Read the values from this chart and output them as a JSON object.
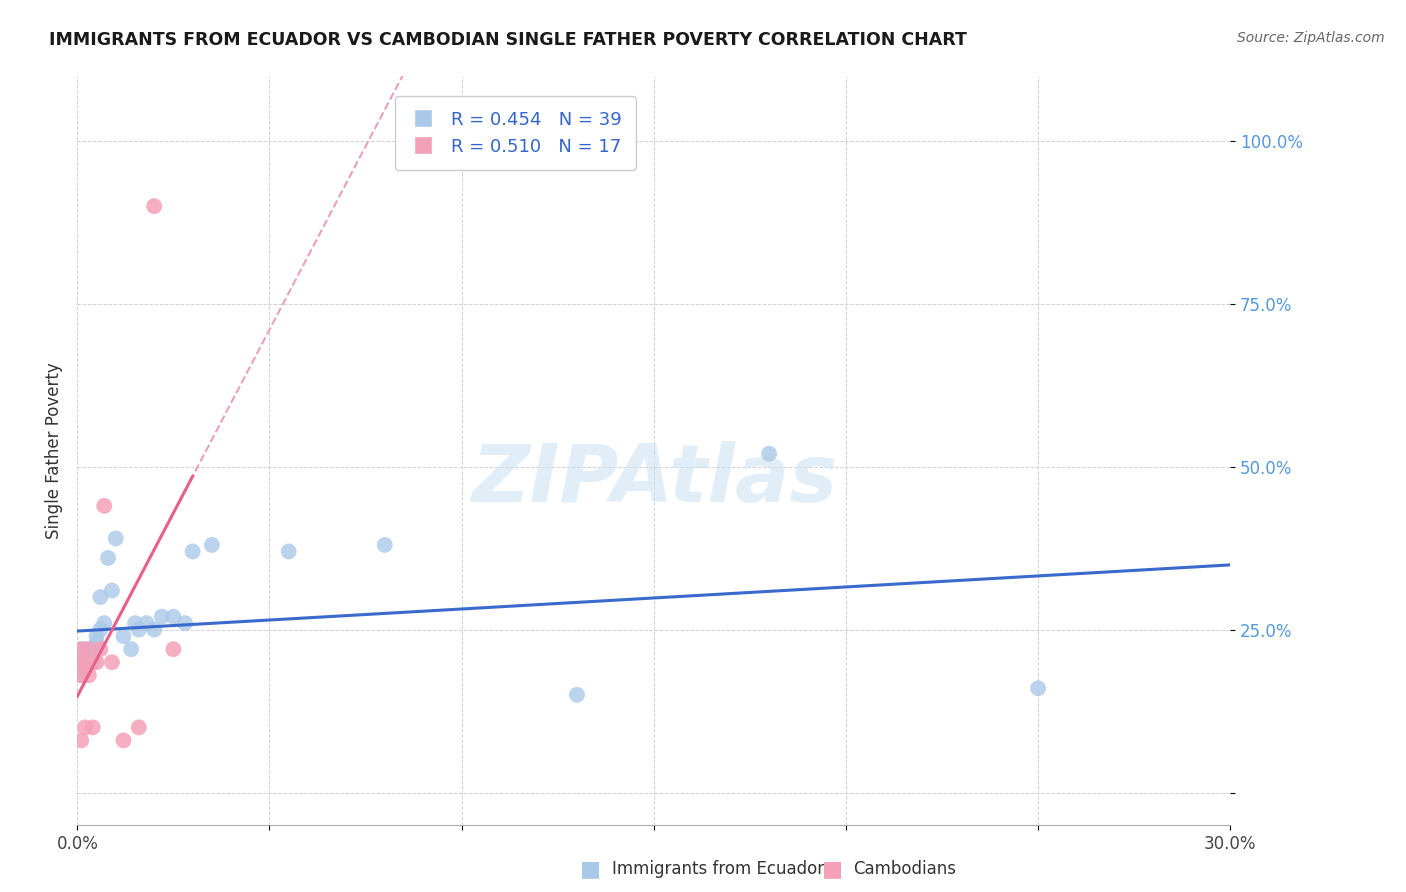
{
  "title": "IMMIGRANTS FROM ECUADOR VS CAMBODIAN SINGLE FATHER POVERTY CORRELATION CHART",
  "source": "Source: ZipAtlas.com",
  "ylabel_label": "Single Father Poverty",
  "x_min": 0.0,
  "x_max": 0.3,
  "y_min": -0.05,
  "y_max": 1.1,
  "blue_color": "#aac8e8",
  "pink_color": "#f4a0b8",
  "blue_line_color": "#3a6bcc",
  "pink_line_color": "#e8608a",
  "pink_dash_color": "#e8a0bc",
  "legend_blue_text": "R = 0.454   N = 39",
  "legend_pink_text": "R = 0.510   N = 17",
  "legend_label_ecuador": "Immigrants from Ecuador",
  "legend_label_cambodian": "Cambodians",
  "watermark": "ZIPAtlas",
  "ecuador_x": [
    0.001,
    0.001,
    0.001,
    0.001,
    0.001,
    0.002,
    0.002,
    0.002,
    0.002,
    0.002,
    0.003,
    0.003,
    0.003,
    0.004,
    0.004,
    0.005,
    0.005,
    0.006,
    0.006,
    0.007,
    0.008,
    0.009,
    0.01,
    0.012,
    0.014,
    0.015,
    0.016,
    0.018,
    0.02,
    0.022,
    0.025,
    0.028,
    0.03,
    0.035,
    0.055,
    0.08,
    0.13,
    0.18,
    0.25
  ],
  "ecuador_y": [
    0.2,
    0.22,
    0.18,
    0.21,
    0.19,
    0.2,
    0.22,
    0.21,
    0.19,
    0.2,
    0.2,
    0.21,
    0.22,
    0.2,
    0.21,
    0.23,
    0.24,
    0.25,
    0.3,
    0.26,
    0.36,
    0.31,
    0.39,
    0.24,
    0.22,
    0.26,
    0.25,
    0.26,
    0.25,
    0.27,
    0.27,
    0.26,
    0.37,
    0.38,
    0.37,
    0.38,
    0.15,
    0.52,
    0.16
  ],
  "cambodian_x": [
    0.001,
    0.001,
    0.001,
    0.001,
    0.002,
    0.002,
    0.003,
    0.003,
    0.004,
    0.005,
    0.006,
    0.007,
    0.009,
    0.012,
    0.016,
    0.02,
    0.025
  ],
  "cambodian_y": [
    0.2,
    0.22,
    0.18,
    0.08,
    0.2,
    0.1,
    0.22,
    0.18,
    0.1,
    0.2,
    0.22,
    0.44,
    0.2,
    0.08,
    0.1,
    0.9,
    0.22
  ]
}
